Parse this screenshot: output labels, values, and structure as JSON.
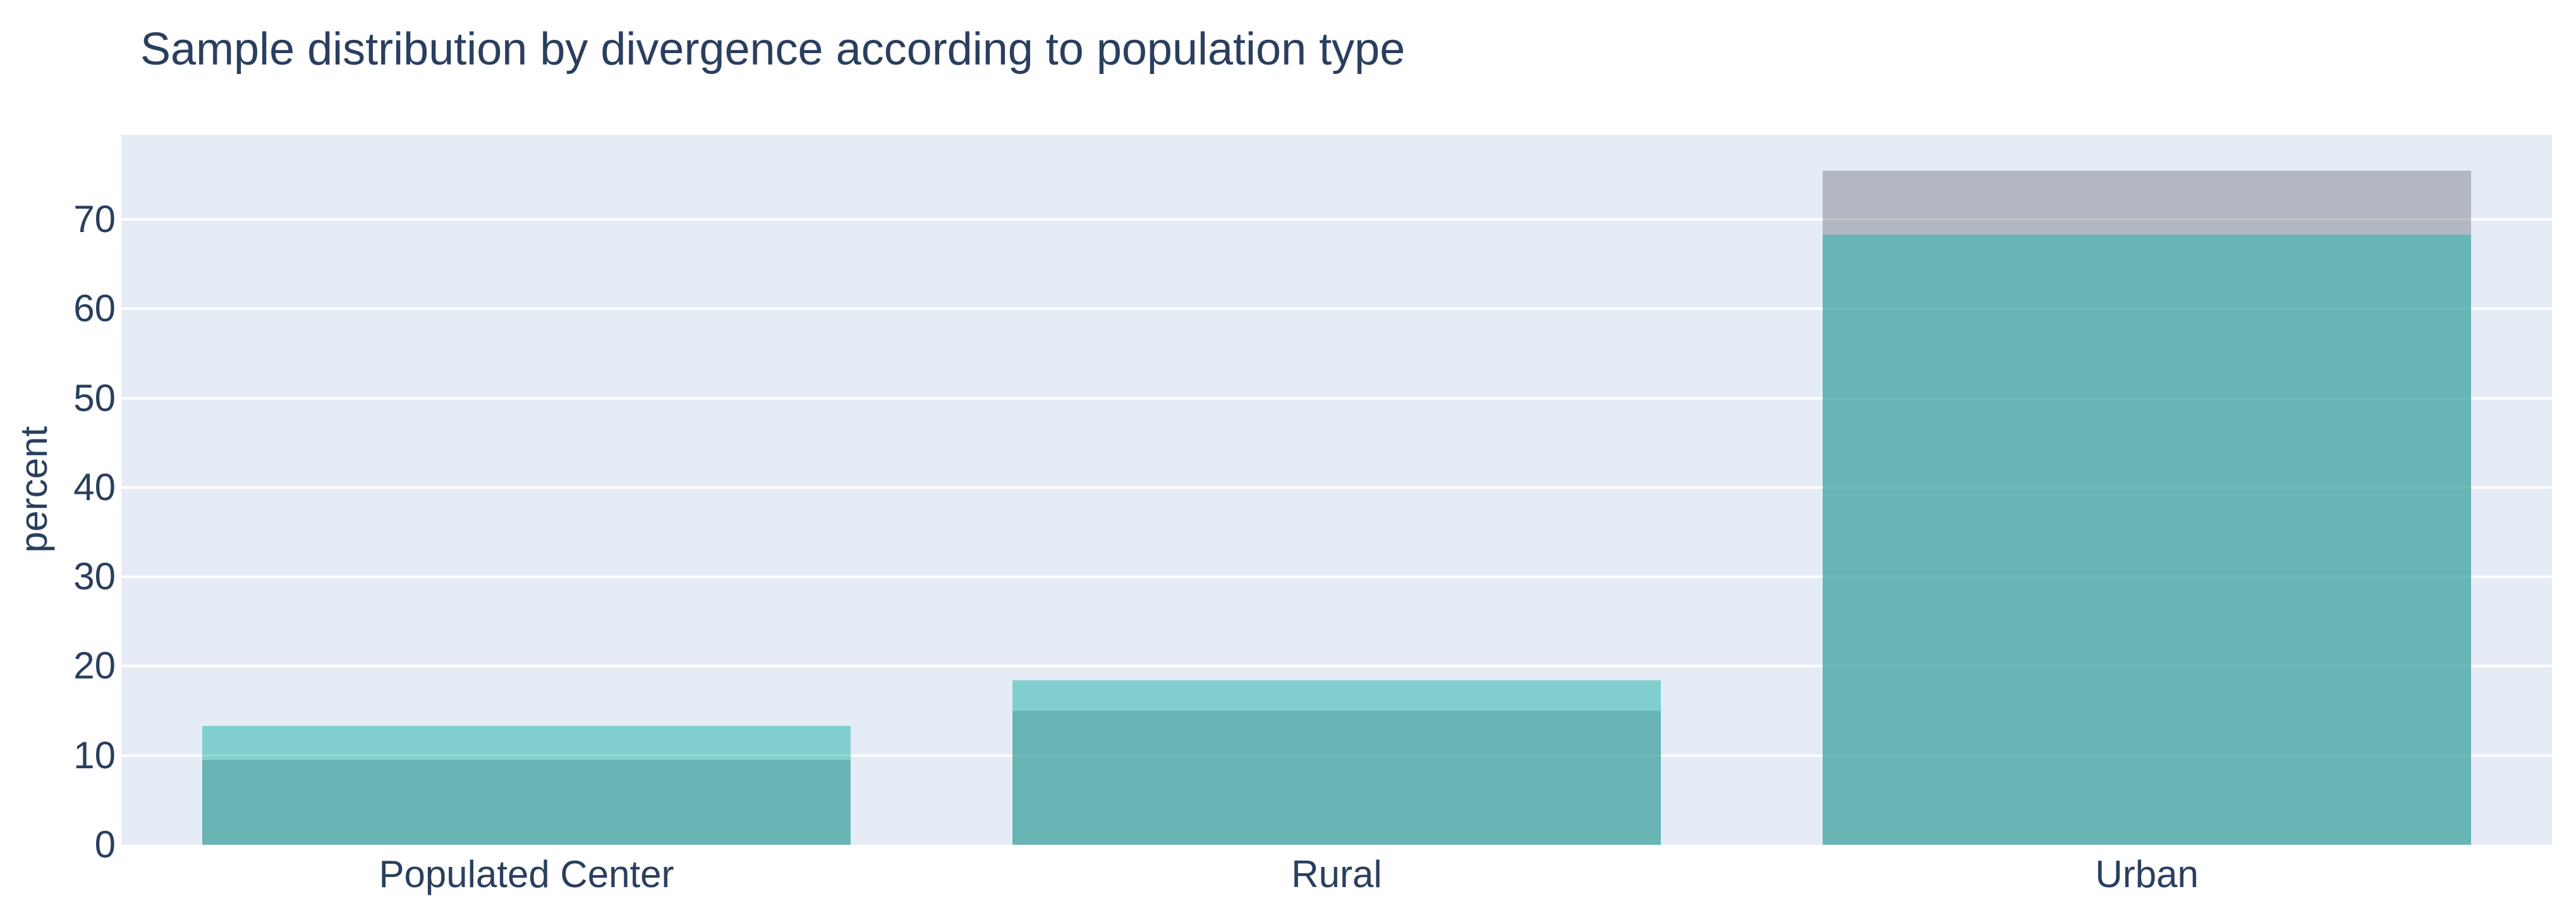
{
  "title": "Sample distribution by divergence according to population type",
  "colors": {
    "text": "#2a3f5f",
    "plot_background": "#e5ecf6",
    "gridline": "#ffffff",
    "teal_series": "rgba(32,178,170,0.5)",
    "gray_series": "rgba(127,130,139,0.5)"
  },
  "chart_data": {
    "type": "bar",
    "barmode": "overlay",
    "title": "Sample distribution by divergence according to population type",
    "xlabel": "",
    "ylabel": "percent",
    "categories": [
      "Populated Center",
      "Rural",
      "Urban"
    ],
    "series": [
      {
        "name": "gray-series",
        "color": "rgba(127,130,139,0.5)",
        "values": [
          9.5,
          15.0,
          75.5
        ]
      },
      {
        "name": "teal-series",
        "color": "rgba(32,178,170,0.5)",
        "values": [
          13.3,
          18.4,
          68.3
        ]
      }
    ],
    "ylim": [
      0,
      79.5
    ],
    "yticks": [
      0,
      10,
      20,
      30,
      40,
      50,
      60,
      70
    ],
    "grid": true,
    "legend_visible": false,
    "bar_fraction_of_slot": 0.8
  }
}
